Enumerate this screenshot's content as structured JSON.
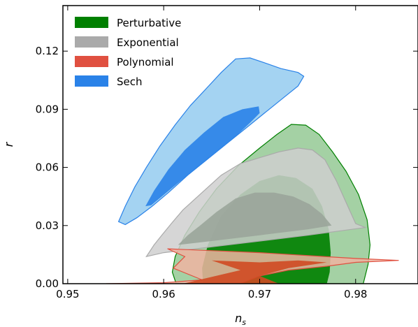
{
  "chart_data": {
    "type": "contour",
    "xlabel": "n",
    "xlabel_sub": "s",
    "ylabel": "r",
    "xlim": [
      0.9495,
      0.9865
    ],
    "ylim": [
      0.0,
      0.1435
    ],
    "xticks": [
      0.95,
      0.96,
      0.97,
      0.98
    ],
    "xtick_labels": [
      "0.95",
      "0.96",
      "0.97",
      "0.98"
    ],
    "yticks": [
      0.0,
      0.03,
      0.06,
      0.09,
      0.12
    ],
    "ytick_labels": [
      "0.00",
      "0.03",
      "0.06",
      "0.09",
      "0.12"
    ],
    "grid": false,
    "legend_position": "top-left",
    "series": [
      {
        "name": "Perturbative",
        "color": "#008000",
        "outer_fill": "#94c994",
        "inner_fill": "#008000",
        "outer": [
          [
            0.9613,
            0.0
          ],
          [
            0.9609,
            0.006
          ],
          [
            0.9612,
            0.014
          ],
          [
            0.9622,
            0.025
          ],
          [
            0.9637,
            0.037
          ],
          [
            0.9655,
            0.049
          ],
          [
            0.9678,
            0.061
          ],
          [
            0.97,
            0.07
          ],
          [
            0.9718,
            0.077
          ],
          [
            0.9733,
            0.0822
          ],
          [
            0.9748,
            0.0818
          ],
          [
            0.9762,
            0.077
          ],
          [
            0.9776,
            0.068
          ],
          [
            0.979,
            0.058
          ],
          [
            0.9803,
            0.046
          ],
          [
            0.9812,
            0.033
          ],
          [
            0.9815,
            0.02
          ],
          [
            0.9813,
            0.01
          ],
          [
            0.9808,
            0.0
          ]
        ],
        "inner": [
          [
            0.9641,
            0.0
          ],
          [
            0.964,
            0.008
          ],
          [
            0.9646,
            0.02
          ],
          [
            0.966,
            0.035
          ],
          [
            0.968,
            0.046
          ],
          [
            0.97,
            0.053
          ],
          [
            0.972,
            0.056
          ],
          [
            0.9738,
            0.0545
          ],
          [
            0.9755,
            0.049
          ],
          [
            0.9765,
            0.04
          ],
          [
            0.9772,
            0.028
          ],
          [
            0.9774,
            0.016
          ],
          [
            0.9773,
            0.006
          ],
          [
            0.977,
            0.0
          ]
        ]
      },
      {
        "name": "Exponential",
        "color": "#aaaaaa",
        "outer_fill": "#cfcfcf",
        "inner_fill": "#9aa59a",
        "outer": [
          [
            0.9582,
            0.014
          ],
          [
            0.959,
            0.02
          ],
          [
            0.9598,
            0.025
          ],
          [
            0.9608,
            0.031
          ],
          [
            0.962,
            0.038
          ],
          [
            0.964,
            0.047
          ],
          [
            0.966,
            0.056
          ],
          [
            0.968,
            0.062
          ],
          [
            0.97,
            0.065
          ],
          [
            0.972,
            0.068
          ],
          [
            0.974,
            0.07
          ],
          [
            0.9755,
            0.069
          ],
          [
            0.9768,
            0.064
          ],
          [
            0.978,
            0.053
          ],
          [
            0.979,
            0.042
          ],
          [
            0.98,
            0.031
          ],
          [
            0.981,
            0.029
          ],
          [
            0.975,
            0.025
          ],
          [
            0.97,
            0.022
          ],
          [
            0.965,
            0.019
          ],
          [
            0.96,
            0.016
          ]
        ],
        "inner": [
          [
            0.9615,
            0.02
          ],
          [
            0.9625,
            0.025
          ],
          [
            0.9638,
            0.03
          ],
          [
            0.9655,
            0.037
          ],
          [
            0.9675,
            0.044
          ],
          [
            0.9695,
            0.047
          ],
          [
            0.9715,
            0.047
          ],
          [
            0.9735,
            0.045
          ],
          [
            0.9752,
            0.041
          ],
          [
            0.9765,
            0.036
          ],
          [
            0.9775,
            0.03
          ],
          [
            0.975,
            0.028
          ],
          [
            0.97,
            0.025
          ],
          [
            0.965,
            0.022
          ]
        ]
      },
      {
        "name": "Polynomial",
        "color": "#e05040",
        "outer_fill": "#f0b4a2",
        "inner_fill": "#d04a22",
        "outer": [
          [
            0.954,
            0.0
          ],
          [
            0.96,
            0.0005
          ],
          [
            0.964,
            0.002
          ],
          [
            0.961,
            0.008
          ],
          [
            0.9622,
            0.014
          ],
          [
            0.9604,
            0.018
          ],
          [
            0.97,
            0.016
          ],
          [
            0.98,
            0.013
          ],
          [
            0.9845,
            0.012
          ],
          [
            0.98,
            0.011
          ],
          [
            0.977,
            0.009
          ],
          [
            0.973,
            0.007
          ],
          [
            0.97,
            0.004
          ],
          [
            0.968,
            0.0
          ]
        ],
        "inner": [
          [
            0.962,
            0.0
          ],
          [
            0.968,
            0.007
          ],
          [
            0.965,
            0.012
          ],
          [
            0.97,
            0.011
          ],
          [
            0.974,
            0.012
          ],
          [
            0.977,
            0.011
          ],
          [
            0.973,
            0.008
          ],
          [
            0.97,
            0.004
          ],
          [
            0.972,
            0.0
          ]
        ]
      },
      {
        "name": "Sech",
        "color": "#2a82e8",
        "outer_fill": "#94cbf0",
        "inner_fill": "#2a82e8",
        "outer": [
          [
            0.9553,
            0.032
          ],
          [
            0.956,
            0.04
          ],
          [
            0.957,
            0.05
          ],
          [
            0.9582,
            0.06
          ],
          [
            0.9596,
            0.071
          ],
          [
            0.9612,
            0.082
          ],
          [
            0.9628,
            0.092
          ],
          [
            0.9645,
            0.101
          ],
          [
            0.966,
            0.109
          ],
          [
            0.9675,
            0.116
          ],
          [
            0.969,
            0.1165
          ],
          [
            0.9705,
            0.114
          ],
          [
            0.9722,
            0.111
          ],
          [
            0.974,
            0.109
          ],
          [
            0.9746,
            0.107
          ],
          [
            0.974,
            0.102
          ],
          [
            0.9725,
            0.096
          ],
          [
            0.9705,
            0.088
          ],
          [
            0.9685,
            0.08
          ],
          [
            0.9665,
            0.072
          ],
          [
            0.9645,
            0.064
          ],
          [
            0.9625,
            0.056
          ],
          [
            0.9605,
            0.047
          ],
          [
            0.9588,
            0.04
          ],
          [
            0.9572,
            0.034
          ],
          [
            0.956,
            0.0305
          ]
        ],
        "inner": [
          [
            0.9581,
            0.04
          ],
          [
            0.959,
            0.048
          ],
          [
            0.9605,
            0.059
          ],
          [
            0.9622,
            0.069
          ],
          [
            0.9642,
            0.078
          ],
          [
            0.9662,
            0.086
          ],
          [
            0.9682,
            0.09
          ],
          [
            0.9699,
            0.0915
          ],
          [
            0.97,
            0.088
          ],
          [
            0.969,
            0.083
          ],
          [
            0.9675,
            0.076
          ],
          [
            0.9655,
            0.068
          ],
          [
            0.9635,
            0.06
          ],
          [
            0.9615,
            0.052
          ],
          [
            0.9598,
            0.045
          ],
          [
            0.9587,
            0.0405
          ]
        ]
      }
    ]
  }
}
